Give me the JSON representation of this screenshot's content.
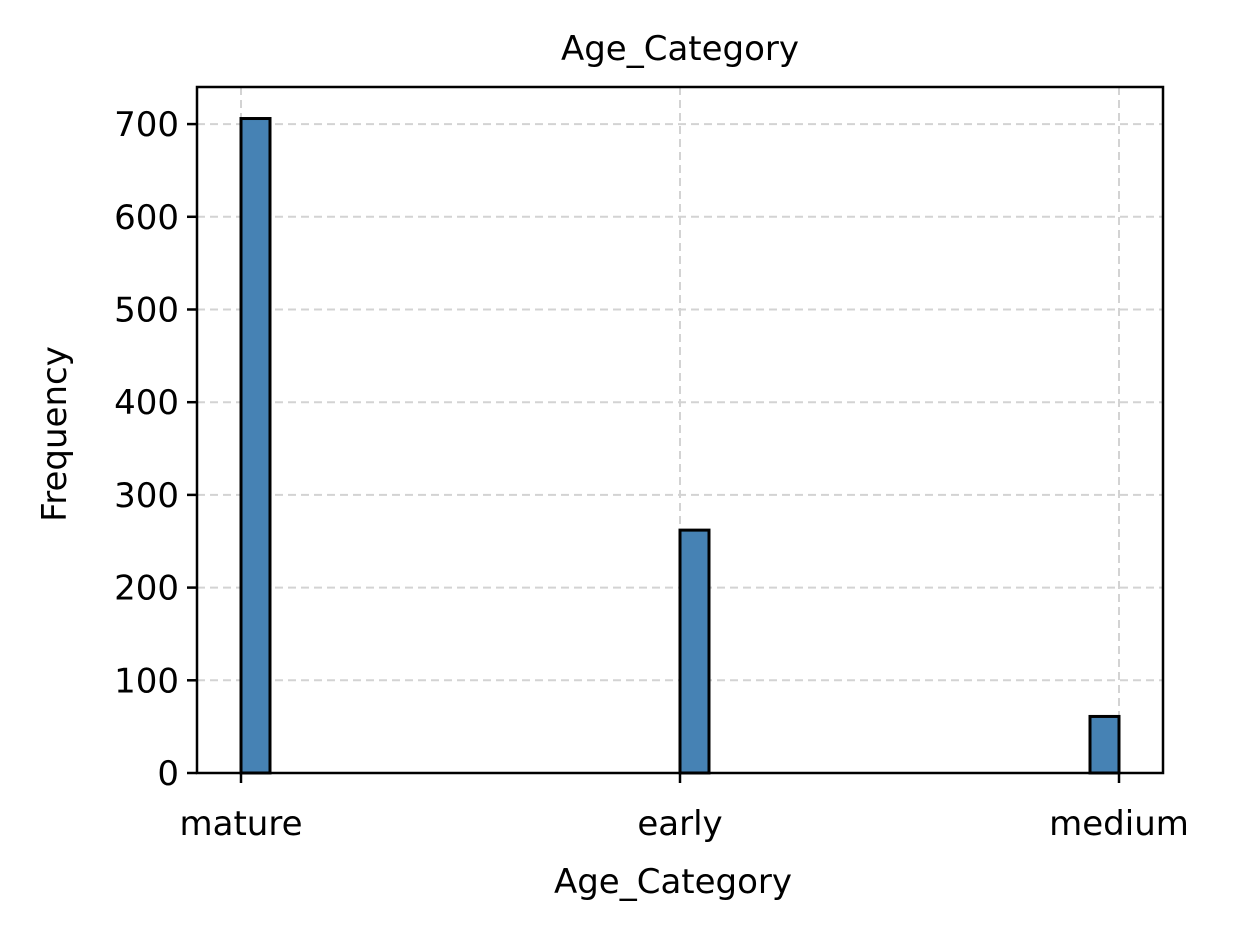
{
  "chart_data": {
    "type": "bar",
    "title": "Age_Category",
    "xlabel": "Age_Category",
    "ylabel": "Frequency",
    "categories": [
      "mature",
      "early",
      "medium"
    ],
    "values": [
      706,
      262,
      61
    ],
    "ylim": [
      0,
      740
    ],
    "yticks": [
      "0",
      "100",
      "200",
      "300",
      "400",
      "500",
      "600",
      "700"
    ],
    "grid": true,
    "legend": false,
    "colors": {
      "bar_fill": "#4682b4",
      "bar_edge": "#000000",
      "grid": "#d3d3d3"
    }
  }
}
